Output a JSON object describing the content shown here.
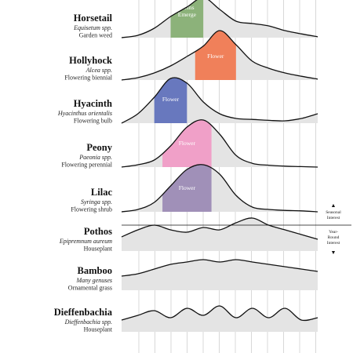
{
  "chart_data": {
    "type": "ridgeline",
    "title": "",
    "xlabel": "",
    "ylabel": "",
    "x_range": [
      0,
      12
    ],
    "gridlines": "vertical",
    "series": [
      {
        "name": "Horsetail",
        "scientific": "Equisetum spp.",
        "type": "Garden weed",
        "x": [
          0,
          1,
          2,
          3,
          4,
          5,
          6,
          7,
          8,
          9,
          10,
          11,
          12
        ],
        "y": [
          0.0,
          0.05,
          0.2,
          0.45,
          0.65,
          0.85,
          0.6,
          0.35,
          0.3,
          0.25,
          0.15,
          0.08,
          0.02
        ],
        "band": {
          "label": "Stems Emerge",
          "x_start": 3,
          "x_end": 5,
          "color": "#8cb27a"
        }
      },
      {
        "name": "Hollyhock",
        "scientific": "Alcea spp.",
        "type": "Flowering biennial",
        "x": [
          0,
          1,
          2,
          3,
          4,
          5,
          6,
          7,
          8,
          9,
          10,
          11,
          12
        ],
        "y": [
          0.0,
          0.05,
          0.15,
          0.3,
          0.5,
          0.72,
          1.05,
          0.75,
          0.4,
          0.25,
          0.15,
          0.08,
          0.02
        ],
        "band": {
          "label": "Flower",
          "x_start": 4.5,
          "x_end": 7,
          "color": "#f0805a"
        }
      },
      {
        "name": "Hyacinth",
        "scientific": "Hyacinthus orientalis",
        "type": "Flowering bulb",
        "x": [
          0,
          1,
          2,
          3,
          4,
          5,
          6,
          7,
          8,
          9,
          10,
          11,
          12
        ],
        "y": [
          0.0,
          0.2,
          0.55,
          0.95,
          0.85,
          0.45,
          0.2,
          0.1,
          0.08,
          0.06,
          0.05,
          0.1,
          0.2
        ],
        "band": {
          "label": "Flower",
          "x_start": 2,
          "x_end": 4,
          "color": "#6878be"
        }
      },
      {
        "name": "Peony",
        "scientific": "Paeonia spp.",
        "type": "Flowering perennial",
        "x": [
          0,
          1,
          2,
          3,
          4,
          5,
          6,
          7,
          8,
          9,
          10,
          11,
          12
        ],
        "y": [
          0.0,
          0.05,
          0.15,
          0.45,
          0.85,
          1.0,
          0.7,
          0.25,
          0.08,
          0.04,
          0.02,
          0.01,
          0.0
        ],
        "band": {
          "label": "Flower",
          "x_start": 2.5,
          "x_end": 5.5,
          "color": "#f0a0c8"
        }
      },
      {
        "name": "Lilac",
        "scientific": "Syringa spp.",
        "type": "Flowering shrub",
        "x": [
          0,
          1,
          2,
          3,
          4,
          5,
          6,
          7,
          8,
          9,
          10,
          11,
          12
        ],
        "y": [
          0.0,
          0.05,
          0.2,
          0.55,
          0.9,
          1.0,
          0.8,
          0.35,
          0.1,
          0.05,
          0.03,
          0.02,
          0.0
        ],
        "band": {
          "label": "Flower",
          "x_start": 2.5,
          "x_end": 5.5,
          "color": "#a090b8"
        }
      },
      {
        "name": "Pothos",
        "scientific": "Epipremnum aureum",
        "type": "Houseplant",
        "x": [
          0,
          1,
          2,
          3,
          4,
          5,
          6,
          7,
          8,
          9,
          10,
          11,
          12
        ],
        "y": [
          0.3,
          0.45,
          0.55,
          0.45,
          0.4,
          0.5,
          0.45,
          0.6,
          0.7,
          0.55,
          0.45,
          0.35,
          0.25
        ]
      },
      {
        "name": "Bamboo",
        "scientific": "Many genuses",
        "type": "Ornamental grass",
        "x": [
          0,
          1,
          2,
          3,
          4,
          5,
          6,
          7,
          8,
          9,
          10,
          11,
          12
        ],
        "y": [
          0.3,
          0.35,
          0.45,
          0.55,
          0.6,
          0.65,
          0.6,
          0.65,
          0.6,
          0.55,
          0.5,
          0.45,
          0.4
        ]
      },
      {
        "name": "Dieffenbachia",
        "scientific": "Dieffenbachia spp.",
        "type": "Houseplant",
        "x": [
          0,
          1,
          2,
          3,
          4,
          5,
          6,
          7,
          8,
          9,
          10,
          11,
          12
        ],
        "y": [
          0.25,
          0.35,
          0.45,
          0.3,
          0.5,
          0.35,
          0.55,
          0.3,
          0.5,
          0.3,
          0.5,
          0.25,
          0.3
        ]
      }
    ],
    "annotations": {
      "seasonal": {
        "arrow": "▲",
        "lines": [
          "Seasonal",
          "Interest"
        ]
      },
      "year_round": {
        "arrow": "▼",
        "lines": [
          "Year-",
          "Round",
          "Interest"
        ]
      }
    }
  }
}
